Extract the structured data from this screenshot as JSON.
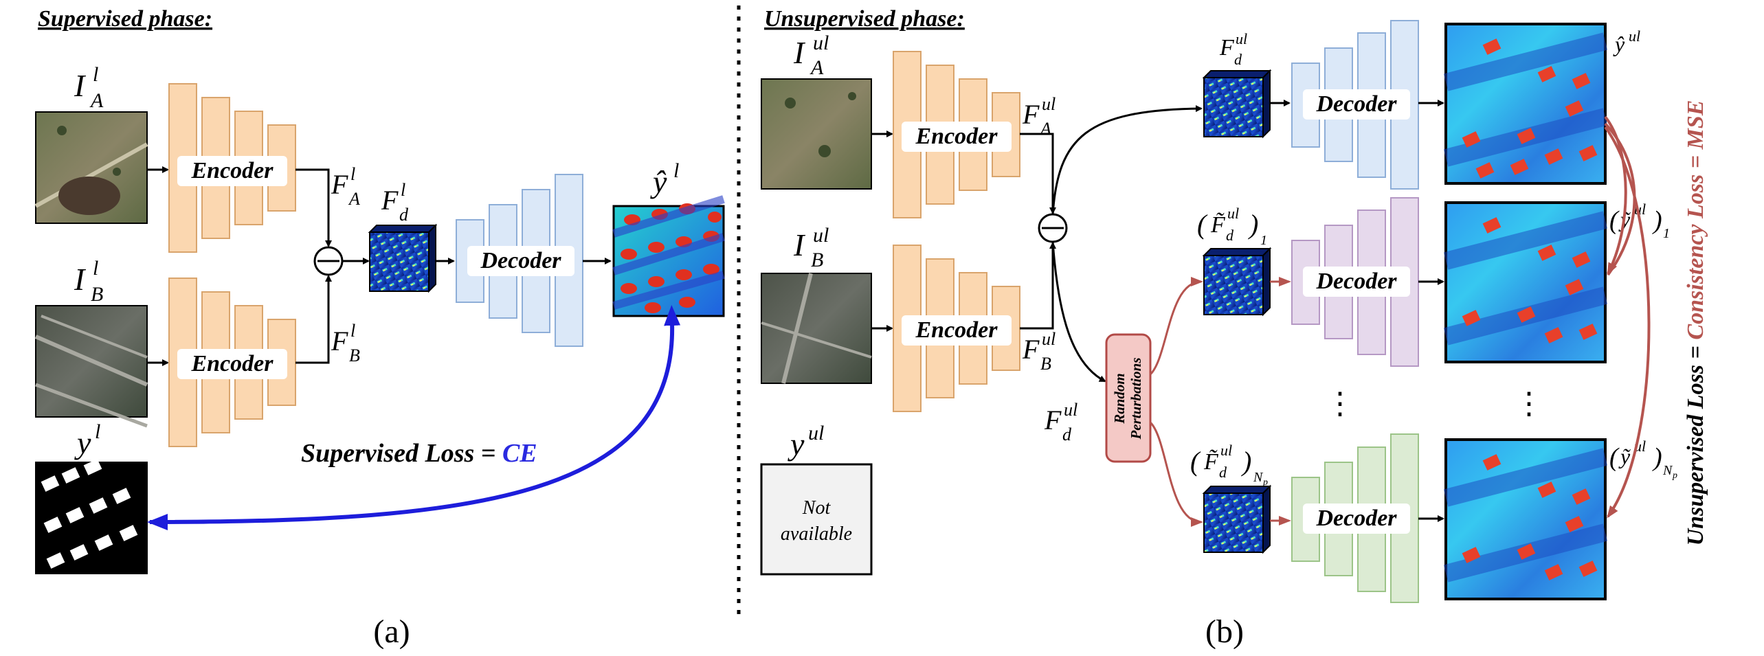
{
  "phases": {
    "supervised": "Supervised phase:",
    "unsupervised": "Unsupervised phase:"
  },
  "blocks": {
    "encoder": "Encoder",
    "decoder": "Decoder",
    "perturb_line1": "Random",
    "perturb_line2": "Perturbations",
    "not_available_1": "Not",
    "not_available_2": "available"
  },
  "symbols": {
    "I": "I",
    "F": "F",
    "y": "y",
    "hat_y": "ŷ",
    "tilde_y": "ỹ",
    "tilde_F": "F̃",
    "sup_l": "l",
    "sup_ul": "ul",
    "sub_A": "A",
    "sub_B": "B",
    "sub_d": "d",
    "sub_1": "1",
    "sub_N": "N",
    "sub_p": "p",
    "lparen": "(",
    "rparen": ")",
    "dots": "⋮"
  },
  "losses": {
    "supervised_prefix": "Supervised Loss = ",
    "supervised_value": "CE",
    "unsupervised_prefix": "Unsupervised Loss = ",
    "unsupervised_value": "Consistency Loss = MSE"
  },
  "captions": {
    "a": "(a)",
    "b": "(b)"
  },
  "colors": {
    "encoder_fill": "#fbd7b0",
    "encoder_stroke": "#d9a46c",
    "decoder_blue_fill": "#dbe8f8",
    "decoder_blue_stroke": "#8eaed8",
    "decoder_purple_fill": "#e6d9ec",
    "decoder_purple_stroke": "#b598c4",
    "decoder_green_fill": "#dcebd3",
    "decoder_green_stroke": "#9cc488",
    "perturb_fill": "#f4c9c6",
    "perturb_stroke": "#b24a47",
    "red_arrow": "#b5544f",
    "blue_arrow": "#1d1ddb",
    "ce_text": "#2a2ae0",
    "mse_text": "#b5544f"
  }
}
